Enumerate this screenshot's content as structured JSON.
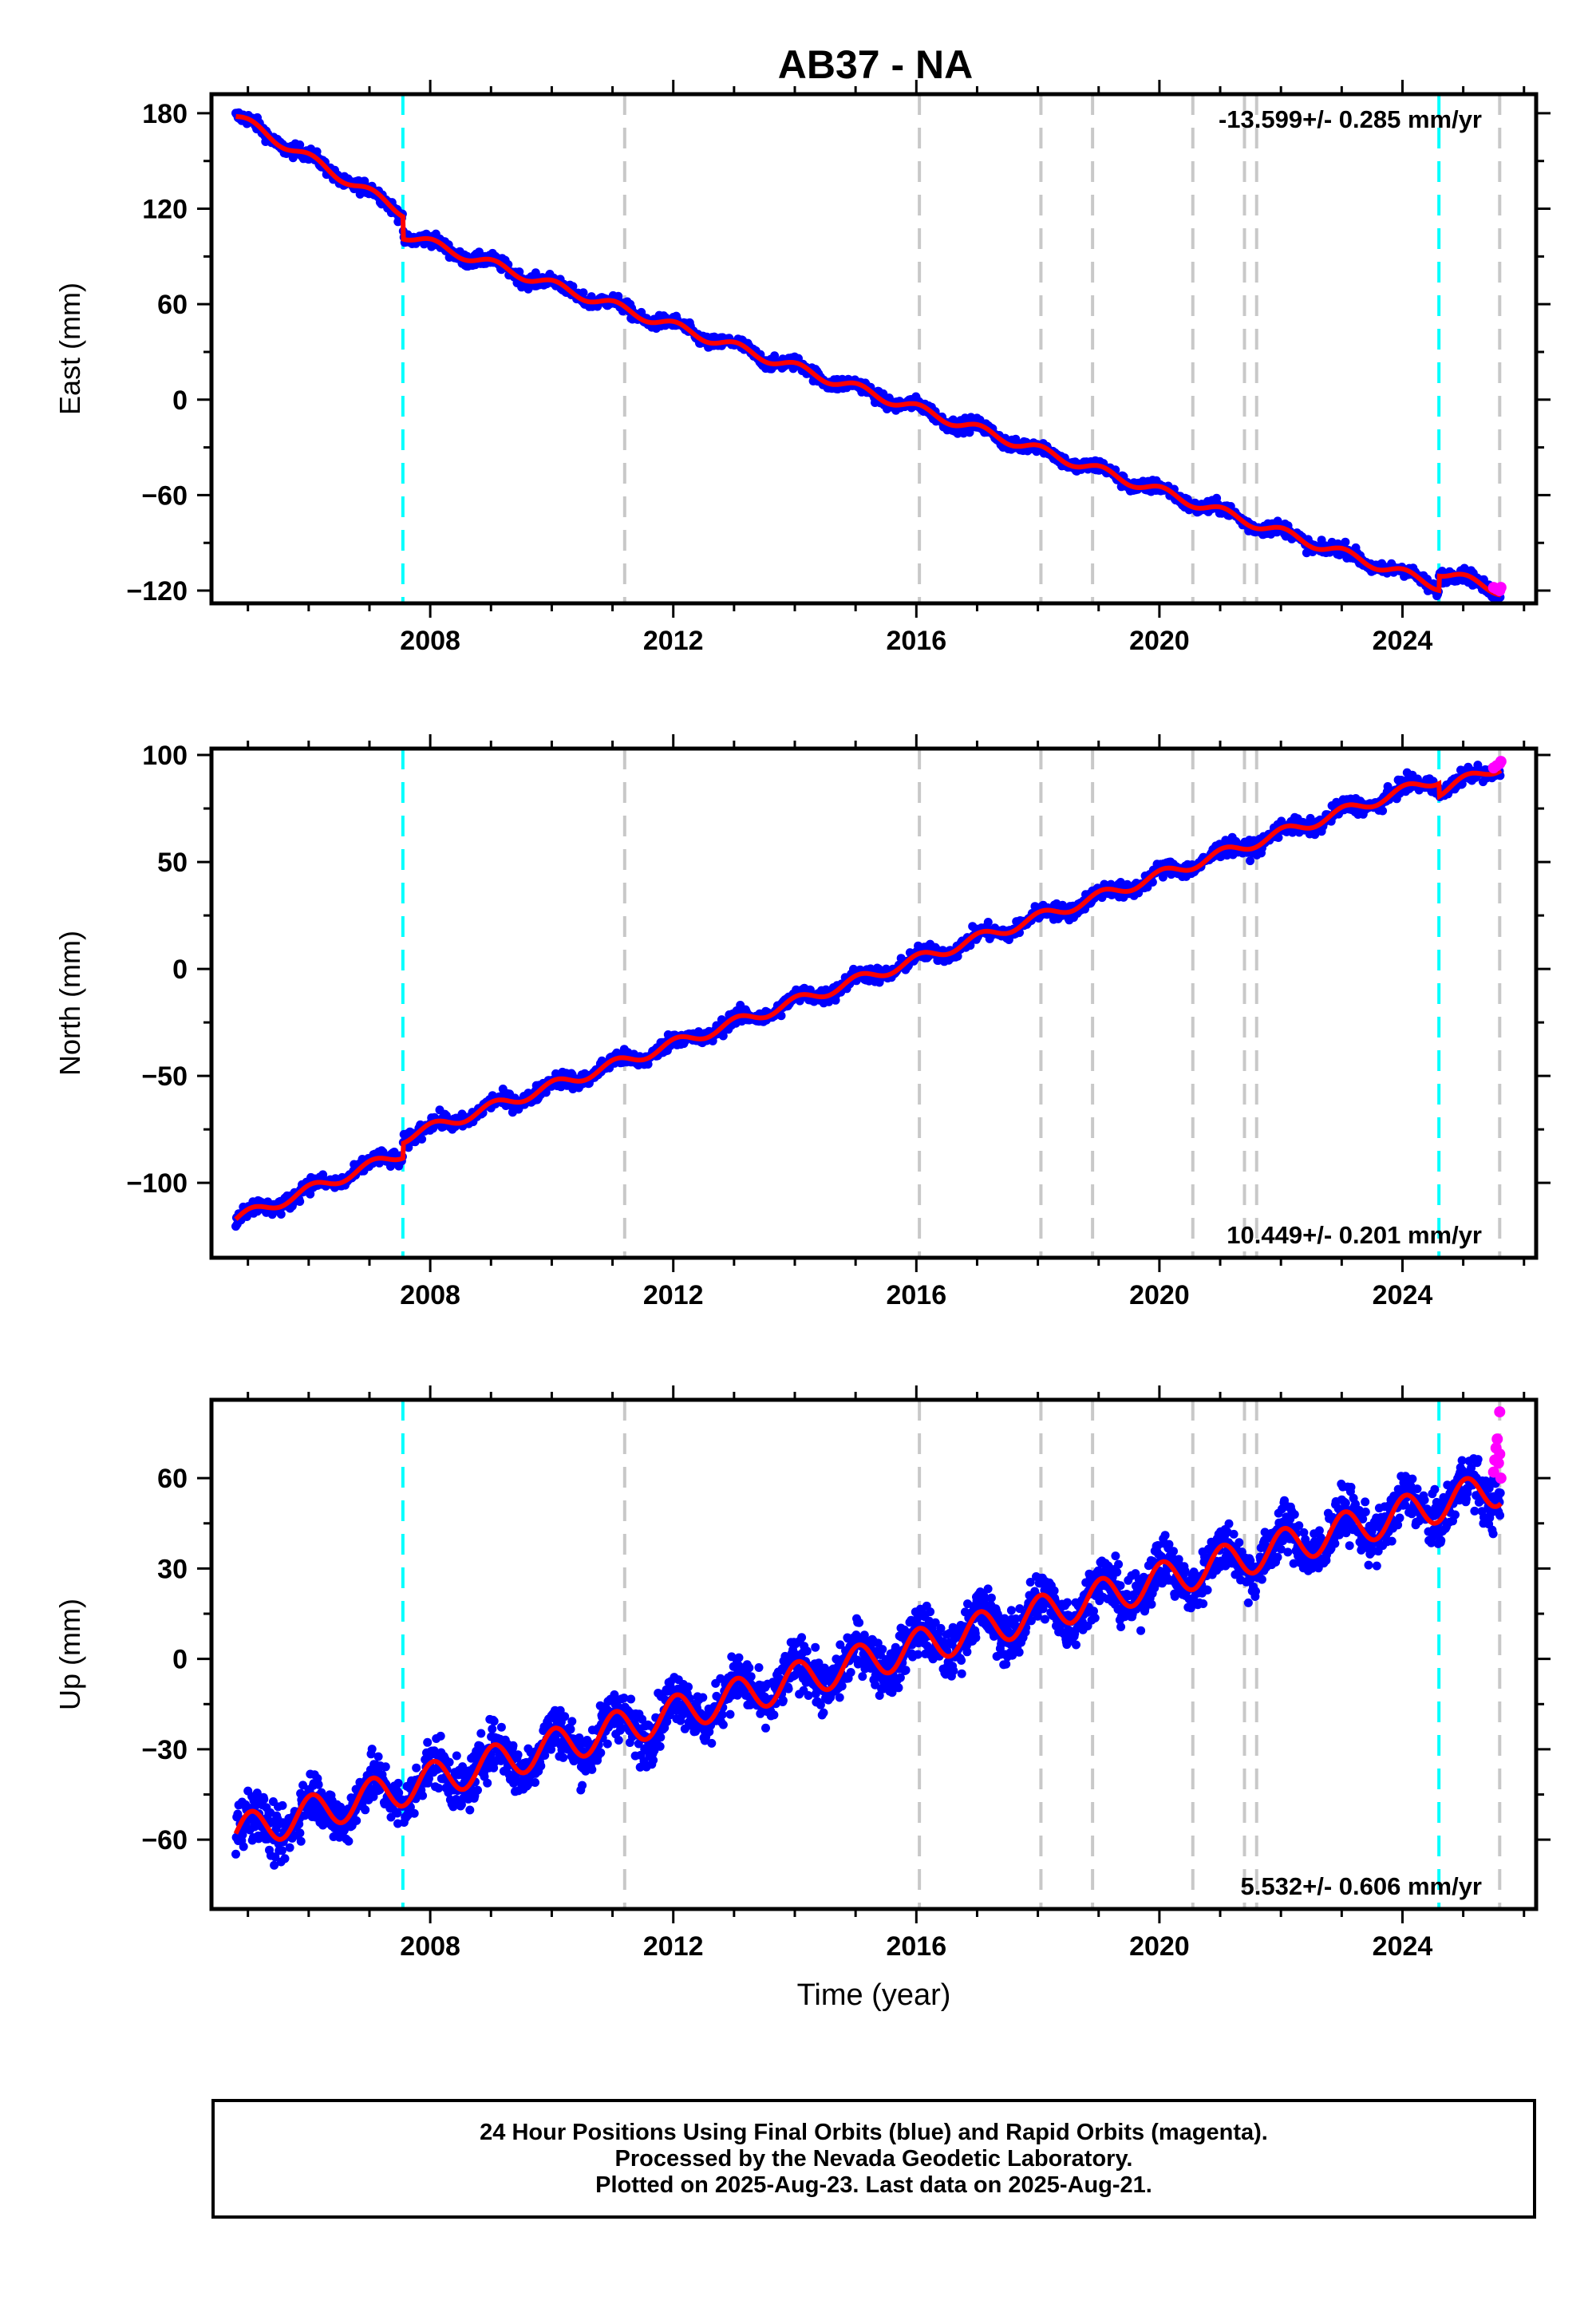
{
  "title": "AB37 - NA",
  "colors": {
    "final_orbits": "#0000ff",
    "rapid_orbits": "#ff00ff",
    "model": "#ff0000",
    "equipment_change": "#00ffff",
    "event": "#c8c8c8"
  },
  "events": {
    "equipment_change_years": [
      2007.55,
      2024.6
    ],
    "other_years": [
      2011.2,
      2016.05,
      2018.05,
      2018.9,
      2020.55,
      2021.4,
      2021.6,
      2025.6
    ]
  },
  "chart_data": [
    {
      "type": "scatter",
      "component": "east",
      "ylabel": "East (mm)",
      "xlabel": "",
      "xlim": [
        2004.4,
        2026.2
      ],
      "ylim": [
        -128,
        192
      ],
      "xticks": [
        2008,
        2012,
        2016,
        2020,
        2024
      ],
      "yticks": [
        -120,
        -60,
        0,
        60,
        120,
        180
      ],
      "ytick_labels": [
        "−120",
        "−60",
        "0",
        "60",
        "120",
        "180"
      ],
      "rate_label": "-13.599+/- 0.285 mm/yr",
      "rate_label_position": "top-right",
      "series": [
        {
          "role": "final_orbits",
          "segments": [
            {
              "x_start": 2004.8,
              "x_end": 2007.55,
              "y_start": 178,
              "y_end": 118
            },
            {
              "x_start": 2007.55,
              "x_end": 2024.6,
              "y_start": 104,
              "y_end": -117
            },
            {
              "x_start": 2024.6,
              "x_end": 2025.62,
              "y_start": -108,
              "y_end": -120
            }
          ],
          "seasonal_amplitude": 3
        },
        {
          "role": "rapid_orbits",
          "x": [
            2025.5,
            2025.55,
            2025.6,
            2025.62
          ],
          "y": [
            -118,
            -119,
            -120,
            -118
          ]
        }
      ],
      "model_curve": {
        "x_start": 2004.8,
        "x_end": 2025.62
      }
    },
    {
      "type": "scatter",
      "component": "north",
      "ylabel": "North (mm)",
      "xlabel": "",
      "xlim": [
        2004.4,
        2026.2
      ],
      "ylim": [
        -135,
        103
      ],
      "xticks": [
        2008,
        2012,
        2016,
        2020,
        2024
      ],
      "yticks": [
        -100,
        -50,
        0,
        50,
        100
      ],
      "ytick_labels": [
        "−100",
        "−50",
        "0",
        "50",
        "100"
      ],
      "rate_label": "10.449+/- 0.201 mm/yr",
      "rate_label_position": "bottom-right",
      "series": [
        {
          "role": "final_orbits",
          "segments": [
            {
              "x_start": 2004.8,
              "x_end": 2007.55,
              "y_start": -117,
              "y_end": -86
            },
            {
              "x_start": 2007.55,
              "x_end": 2024.6,
              "y_start": -79,
              "y_end": 89
            },
            {
              "x_start": 2024.6,
              "x_end": 2025.62,
              "y_start": 83,
              "y_end": 95
            }
          ],
          "seasonal_amplitude": 2.5
        },
        {
          "role": "rapid_orbits",
          "x": [
            2025.5,
            2025.55,
            2025.6,
            2025.62
          ],
          "y": [
            94,
            95,
            96,
            97
          ]
        }
      ],
      "model_curve": {
        "x_start": 2004.8,
        "x_end": 2025.62
      }
    },
    {
      "type": "scatter",
      "component": "up",
      "ylabel": "Up (mm)",
      "xlabel": "Time (year)",
      "xlim": [
        2004.4,
        2026.2
      ],
      "ylim": [
        -83,
        86
      ],
      "xticks": [
        2008,
        2012,
        2016,
        2020,
        2024
      ],
      "yticks": [
        -60,
        -30,
        0,
        30,
        60
      ],
      "ytick_labels": [
        "−60",
        "−30",
        "0",
        "30",
        "60"
      ],
      "rate_label": "5.532+/- 0.606 mm/yr",
      "rate_label_position": "bottom-right",
      "series": [
        {
          "role": "final_orbits",
          "segments": [
            {
              "x_start": 2004.8,
              "x_end": 2025.62,
              "y_start": -58,
              "y_end": 57
            }
          ],
          "seasonal_amplitude": 6,
          "scatter_spread": 8
        },
        {
          "role": "rapid_orbits",
          "x": [
            2025.5,
            2025.52,
            2025.54,
            2025.56,
            2025.58,
            2025.6,
            2025.62,
            2025.6
          ],
          "y": [
            62,
            66,
            70,
            73,
            65,
            68,
            60,
            82
          ]
        }
      ],
      "model_curve": {
        "x_start": 2004.8,
        "x_end": 2025.62
      }
    }
  ],
  "footer": {
    "line1": "24 Hour Positions Using Final Orbits (blue) and Rapid Orbits (magenta).",
    "line2": "Processed by the Nevada Geodetic Laboratory.",
    "line3": "Plotted on 2025-Aug-23. Last data on 2025-Aug-21."
  }
}
